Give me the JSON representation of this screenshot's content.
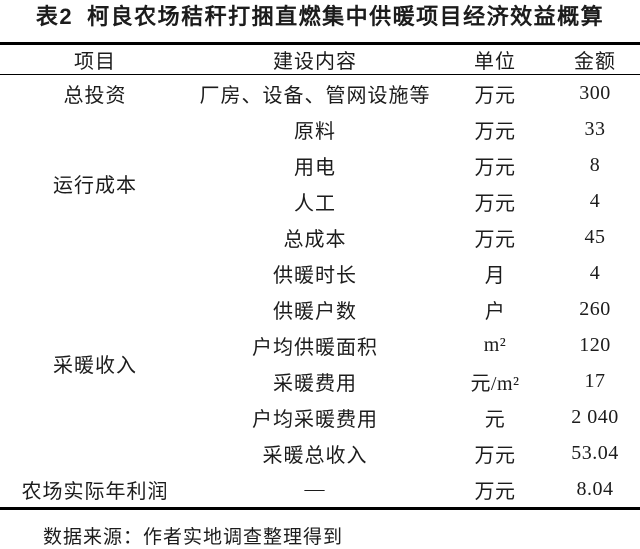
{
  "title": {
    "label": "表2",
    "text": "柯良农场秸秆打捆直燃集中供暖项目经济效益概算"
  },
  "table": {
    "headers": [
      "项目",
      "建设内容",
      "单位",
      "金额"
    ],
    "groups": [
      {
        "item": "总投资",
        "rows": [
          {
            "content": "厂房、设备、管网设施等",
            "unit": "万元",
            "amount": "300"
          }
        ]
      },
      {
        "item": "运行成本",
        "rows": [
          {
            "content": "原料",
            "unit": "万元",
            "amount": "33"
          },
          {
            "content": "用电",
            "unit": "万元",
            "amount": "8"
          },
          {
            "content": "人工",
            "unit": "万元",
            "amount": "4"
          },
          {
            "content": "总成本",
            "unit": "万元",
            "amount": "45"
          }
        ]
      },
      {
        "item": "采暖收入",
        "rows": [
          {
            "content": "供暖时长",
            "unit": "月",
            "amount": "4"
          },
          {
            "content": "供暖户数",
            "unit": "户",
            "amount": "260"
          },
          {
            "content": "户均供暖面积",
            "unit": "m²",
            "amount": "120"
          },
          {
            "content": "采暖费用",
            "unit": "元/m²",
            "amount": "17"
          },
          {
            "content": "户均采暖费用",
            "unit": "元",
            "amount": "2 040"
          },
          {
            "content": "采暖总收入",
            "unit": "万元",
            "amount": "53.04"
          }
        ]
      },
      {
        "item": "农场实际年利润",
        "rows": [
          {
            "content": "—",
            "unit": "万元",
            "amount": "8.04"
          }
        ]
      }
    ]
  },
  "footer": {
    "source_note": "数据来源：作者实地调查整理得到"
  },
  "colors": {
    "text": "#1c1c1c",
    "rule": "#000000",
    "background": "#ffffff"
  }
}
